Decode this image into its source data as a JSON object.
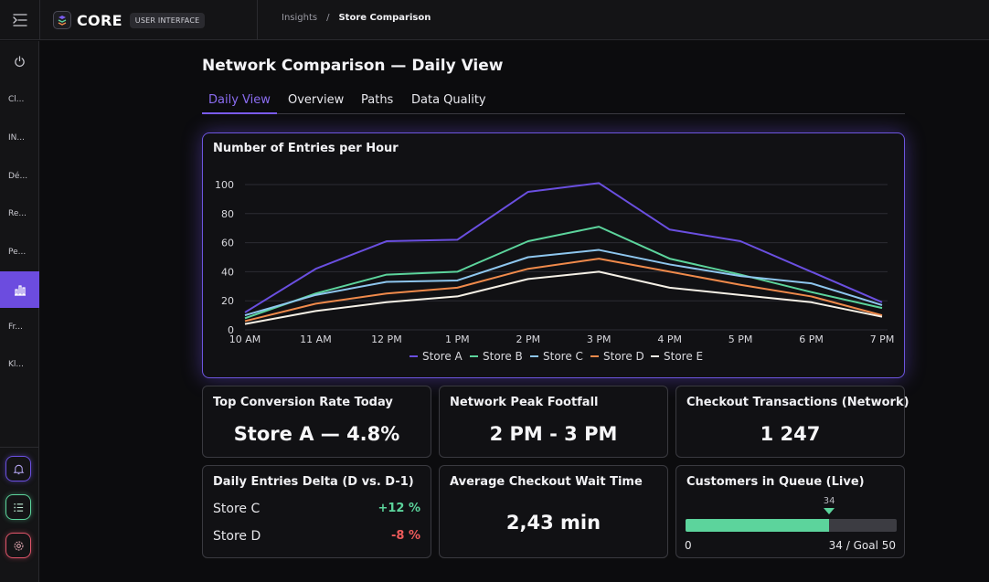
{
  "brand": {
    "name": "CORE",
    "badge": "USER INTERFACE"
  },
  "breadcrumb": {
    "parent": "Insights",
    "separator": "/",
    "current": "Store Comparison"
  },
  "sidebar": {
    "items": [
      {
        "label": "Cl..."
      },
      {
        "label": "IN..."
      },
      {
        "label": "Dé..."
      },
      {
        "label": "Re..."
      },
      {
        "label": "Pe..."
      },
      {
        "label": "",
        "icon": "bar-chart-icon",
        "active": true
      },
      {
        "label": "Fr..."
      },
      {
        "label": "Kl..."
      }
    ],
    "bottom_icons": [
      "bell-icon",
      "list-icon",
      "settings-icon"
    ]
  },
  "page": {
    "title": "Network Comparison — Daily View"
  },
  "tabs": [
    {
      "label": "Daily View",
      "active": true
    },
    {
      "label": "Overview"
    },
    {
      "label": "Paths"
    },
    {
      "label": "Data Quality"
    }
  ],
  "chart_data": {
    "type": "line",
    "title": "Number of Entries per Hour",
    "xlabel": "",
    "ylabel": "",
    "categories": [
      "10 AM",
      "11 AM",
      "12 PM",
      "1 PM",
      "2 PM",
      "3 PM",
      "4 PM",
      "5 PM",
      "6 PM",
      "7 PM"
    ],
    "ylim": [
      0,
      100
    ],
    "yticks": [
      0,
      20,
      40,
      60,
      80,
      100
    ],
    "grid": true,
    "legend": "bottom",
    "series": [
      {
        "name": "Store A",
        "color": "#6a4fe0",
        "values": [
          12,
          42,
          61,
          62,
          95,
          101,
          69,
          61,
          40,
          19
        ]
      },
      {
        "name": "Store B",
        "color": "#5cd49c",
        "values": [
          8,
          25,
          38,
          40,
          61,
          71,
          49,
          38,
          26,
          15
        ]
      },
      {
        "name": "Store C",
        "color": "#8ec6ee",
        "values": [
          10,
          24,
          33,
          34,
          50,
          55,
          45,
          37,
          32,
          17
        ]
      },
      {
        "name": "Store D",
        "color": "#f08a4b",
        "values": [
          6,
          18,
          25,
          29,
          42,
          49,
          40,
          31,
          23,
          10
        ]
      },
      {
        "name": "Store E",
        "color": "#f5f0e6",
        "values": [
          4,
          13,
          19,
          23,
          35,
          40,
          29,
          24,
          19,
          9
        ]
      }
    ]
  },
  "cards": {
    "conversion": {
      "title": "Top Conversion Rate Today",
      "value": "Store A — 4.8%"
    },
    "peak": {
      "title": "Network Peak Footfall",
      "value": "2 PM - 3 PM"
    },
    "checkout": {
      "title": "Checkout Transactions (Network)",
      "value": "1 247"
    },
    "delta": {
      "title": "Daily Entries Delta (D vs. D-1)",
      "rows": [
        {
          "store": "Store C",
          "value": "+12 %",
          "color": "#5cd49c"
        },
        {
          "store": "Store D",
          "value": "-8 %",
          "color": "#ef5b5b"
        }
      ]
    },
    "wait": {
      "title": "Average Checkout Wait Time",
      "value": "2,43 min"
    },
    "queue": {
      "title": "Customers in Queue (Live)",
      "current": 34,
      "current_label": "34",
      "min_label": "0",
      "goal_label": "34 / Goal 50",
      "goal": 50
    }
  }
}
